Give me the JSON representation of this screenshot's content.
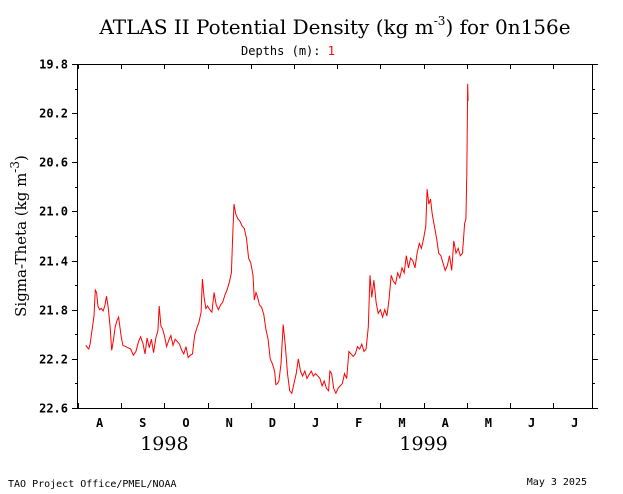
{
  "title": {
    "prefix": "ATLAS II Potential Density (kg m",
    "superscript": "-3",
    "suffix": ") for 0n156e"
  },
  "depths": {
    "label": "Depths (m):",
    "value": "1"
  },
  "footer": {
    "left": "TAO Project Office/PMEL/NOAA",
    "right": "May  3 2025"
  },
  "chart_data": {
    "type": "line",
    "title": "ATLAS II Potential Density (kg m-3) for 0n156e",
    "ylabel": "Sigma-Theta (kg m-3)",
    "ylabel_parts": {
      "prefix": "Sigma-Theta (kg m",
      "superscript": "-3",
      "suffix": ")"
    },
    "y_inverted": true,
    "ylim": [
      19.8,
      22.6
    ],
    "yticks": [
      "19.8",
      "20.2",
      "20.6",
      "21.0",
      "21.4",
      "21.8",
      "22.2",
      "22.6"
    ],
    "ytick_values": [
      19.8,
      20.2,
      20.6,
      21.0,
      21.4,
      21.8,
      22.2,
      22.6
    ],
    "x_range_months": [
      0,
      12.45
    ],
    "month_labels": [
      "A",
      "S",
      "O",
      "N",
      "D",
      "J",
      "F",
      "M",
      "A",
      "M",
      "J",
      "J"
    ],
    "year_labels": [
      {
        "text": "1998",
        "center_month": 2.0
      },
      {
        "text": "1999",
        "center_month": 8.0
      }
    ],
    "grid": false,
    "series": [
      {
        "color": "#ff0000",
        "points": [
          [
            0.18,
            22.09
          ],
          [
            0.22,
            22.11
          ],
          [
            0.25,
            22.12
          ],
          [
            0.28,
            22.08
          ],
          [
            0.32,
            21.98
          ],
          [
            0.37,
            21.85
          ],
          [
            0.4,
            21.64
          ],
          [
            0.43,
            21.66
          ],
          [
            0.46,
            21.77
          ],
          [
            0.5,
            21.8
          ],
          [
            0.54,
            21.79
          ],
          [
            0.58,
            21.81
          ],
          [
            0.62,
            21.77
          ],
          [
            0.66,
            21.69
          ],
          [
            0.7,
            21.78
          ],
          [
            0.74,
            21.93
          ],
          [
            0.78,
            22.13
          ],
          [
            0.82,
            22.05
          ],
          [
            0.86,
            21.94
          ],
          [
            0.9,
            21.89
          ],
          [
            0.94,
            21.86
          ],
          [
            0.97,
            21.94
          ],
          [
            1.0,
            22.02
          ],
          [
            1.04,
            22.09
          ],
          [
            1.1,
            22.1
          ],
          [
            1.16,
            22.11
          ],
          [
            1.22,
            22.12
          ],
          [
            1.28,
            22.17
          ],
          [
            1.34,
            22.14
          ],
          [
            1.4,
            22.06
          ],
          [
            1.45,
            22.02
          ],
          [
            1.5,
            22.07
          ],
          [
            1.55,
            22.16
          ],
          [
            1.6,
            22.03
          ],
          [
            1.65,
            22.11
          ],
          [
            1.7,
            22.04
          ],
          [
            1.75,
            22.15
          ],
          [
            1.8,
            22.03
          ],
          [
            1.85,
            21.97
          ],
          [
            1.88,
            21.77
          ],
          [
            1.92,
            21.93
          ],
          [
            1.96,
            21.96
          ],
          [
            2.0,
            22.01
          ],
          [
            2.05,
            22.1
          ],
          [
            2.1,
            22.05
          ],
          [
            2.15,
            22.01
          ],
          [
            2.2,
            22.09
          ],
          [
            2.25,
            22.04
          ],
          [
            2.3,
            22.06
          ],
          [
            2.35,
            22.08
          ],
          [
            2.4,
            22.13
          ],
          [
            2.45,
            22.16
          ],
          [
            2.5,
            22.1
          ],
          [
            2.55,
            22.19
          ],
          [
            2.6,
            22.17
          ],
          [
            2.65,
            22.16
          ],
          [
            2.7,
            22.01
          ],
          [
            2.75,
            21.95
          ],
          [
            2.8,
            21.9
          ],
          [
            2.85,
            21.82
          ],
          [
            2.88,
            21.55
          ],
          [
            2.92,
            21.7
          ],
          [
            2.96,
            21.79
          ],
          [
            3.0,
            21.77
          ],
          [
            3.05,
            21.8
          ],
          [
            3.1,
            21.82
          ],
          [
            3.15,
            21.66
          ],
          [
            3.2,
            21.76
          ],
          [
            3.25,
            21.8
          ],
          [
            3.3,
            21.76
          ],
          [
            3.35,
            21.74
          ],
          [
            3.4,
            21.68
          ],
          [
            3.45,
            21.64
          ],
          [
            3.5,
            21.58
          ],
          [
            3.55,
            21.5
          ],
          [
            3.58,
            21.2
          ],
          [
            3.61,
            20.94
          ],
          [
            3.65,
            21.02
          ],
          [
            3.7,
            21.06
          ],
          [
            3.75,
            21.08
          ],
          [
            3.8,
            21.12
          ],
          [
            3.85,
            21.14
          ],
          [
            3.9,
            21.22
          ],
          [
            3.95,
            21.38
          ],
          [
            4.0,
            21.42
          ],
          [
            4.05,
            21.52
          ],
          [
            4.08,
            21.72
          ],
          [
            4.12,
            21.66
          ],
          [
            4.16,
            21.7
          ],
          [
            4.2,
            21.76
          ],
          [
            4.25,
            21.78
          ],
          [
            4.3,
            21.84
          ],
          [
            4.35,
            21.96
          ],
          [
            4.4,
            22.04
          ],
          [
            4.45,
            22.2
          ],
          [
            4.5,
            22.24
          ],
          [
            4.55,
            22.3
          ],
          [
            4.58,
            22.41
          ],
          [
            4.62,
            22.4
          ],
          [
            4.65,
            22.38
          ],
          [
            4.7,
            22.24
          ],
          [
            4.75,
            21.92
          ],
          [
            4.8,
            22.1
          ],
          [
            4.85,
            22.32
          ],
          [
            4.9,
            22.46
          ],
          [
            4.95,
            22.48
          ],
          [
            5.0,
            22.4
          ],
          [
            5.05,
            22.32
          ],
          [
            5.1,
            22.2
          ],
          [
            5.15,
            22.3
          ],
          [
            5.2,
            22.34
          ],
          [
            5.25,
            22.3
          ],
          [
            5.3,
            22.36
          ],
          [
            5.35,
            22.33
          ],
          [
            5.4,
            22.3
          ],
          [
            5.45,
            22.34
          ],
          [
            5.5,
            22.32
          ],
          [
            5.55,
            22.34
          ],
          [
            5.6,
            22.36
          ],
          [
            5.65,
            22.42
          ],
          [
            5.7,
            22.38
          ],
          [
            5.75,
            22.44
          ],
          [
            5.8,
            22.46
          ],
          [
            5.83,
            22.3
          ],
          [
            5.87,
            22.32
          ],
          [
            5.92,
            22.44
          ],
          [
            5.97,
            22.48
          ],
          [
            6.02,
            22.44
          ],
          [
            6.07,
            22.42
          ],
          [
            6.12,
            22.4
          ],
          [
            6.17,
            22.32
          ],
          [
            6.22,
            22.36
          ],
          [
            6.27,
            22.14
          ],
          [
            6.32,
            22.16
          ],
          [
            6.37,
            22.18
          ],
          [
            6.42,
            22.16
          ],
          [
            6.47,
            22.1
          ],
          [
            6.52,
            22.12
          ],
          [
            6.57,
            22.08
          ],
          [
            6.62,
            22.14
          ],
          [
            6.67,
            22.12
          ],
          [
            6.72,
            21.94
          ],
          [
            6.76,
            21.52
          ],
          [
            6.8,
            21.7
          ],
          [
            6.85,
            21.56
          ],
          [
            6.9,
            21.74
          ],
          [
            6.95,
            21.83
          ],
          [
            7.0,
            21.8
          ],
          [
            7.05,
            21.86
          ],
          [
            7.1,
            21.8
          ],
          [
            7.15,
            21.85
          ],
          [
            7.2,
            21.72
          ],
          [
            7.25,
            21.52
          ],
          [
            7.3,
            21.57
          ],
          [
            7.35,
            21.59
          ],
          [
            7.4,
            21.5
          ],
          [
            7.45,
            21.54
          ],
          [
            7.5,
            21.46
          ],
          [
            7.55,
            21.5
          ],
          [
            7.6,
            21.36
          ],
          [
            7.65,
            21.46
          ],
          [
            7.7,
            21.38
          ],
          [
            7.75,
            21.4
          ],
          [
            7.8,
            21.46
          ],
          [
            7.85,
            21.34
          ],
          [
            7.9,
            21.26
          ],
          [
            7.95,
            21.3
          ],
          [
            8.0,
            21.22
          ],
          [
            8.05,
            21.12
          ],
          [
            8.08,
            20.82
          ],
          [
            8.12,
            20.94
          ],
          [
            8.16,
            20.9
          ],
          [
            8.2,
            21.02
          ],
          [
            8.25,
            21.12
          ],
          [
            8.3,
            21.22
          ],
          [
            8.35,
            21.34
          ],
          [
            8.4,
            21.36
          ],
          [
            8.45,
            21.42
          ],
          [
            8.5,
            21.48
          ],
          [
            8.55,
            21.44
          ],
          [
            8.6,
            21.36
          ],
          [
            8.65,
            21.48
          ],
          [
            8.7,
            21.24
          ],
          [
            8.75,
            21.34
          ],
          [
            8.8,
            21.3
          ],
          [
            8.85,
            21.36
          ],
          [
            8.9,
            21.34
          ],
          [
            8.95,
            21.1
          ],
          [
            8.98,
            21.06
          ],
          [
            9.0,
            20.7
          ],
          [
            9.02,
            19.96
          ],
          [
            9.03,
            20.1
          ]
        ]
      }
    ]
  }
}
